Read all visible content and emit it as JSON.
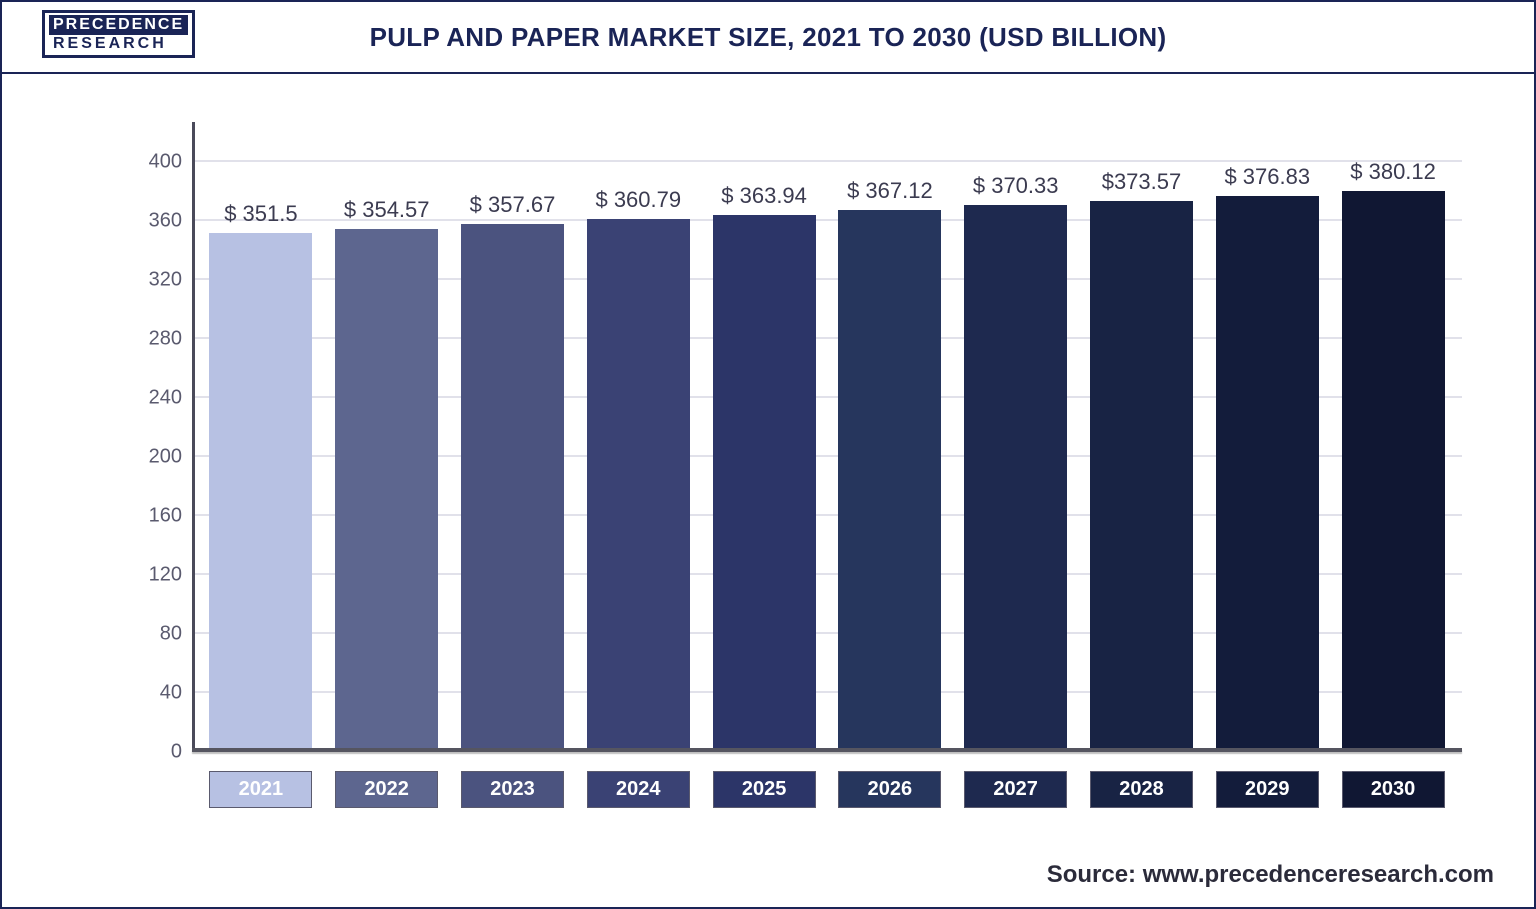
{
  "logo": {
    "line1": "PRECEDENCE",
    "line2": "RESEARCH"
  },
  "title": "PULP AND PAPER MARKET SIZE, 2021 TO 2030 (USD BILLION)",
  "source": "Source: www.precedenceresearch.com",
  "chart": {
    "type": "bar",
    "ylim": [
      0,
      420
    ],
    "yticks": [
      0,
      40,
      80,
      120,
      160,
      200,
      240,
      280,
      320,
      360,
      400
    ],
    "ytick_step": 40,
    "grid_color": "#e1e1ea",
    "axis_color": "#4a4a5a",
    "background_color": "#ffffff",
    "value_prefix": "$ ",
    "value_fontsize": 22,
    "tick_fontsize": 20,
    "bar_width_ratio": 0.82,
    "categories": [
      "2021",
      "2022",
      "2023",
      "2024",
      "2025",
      "2026",
      "2027",
      "2028",
      "2029",
      "2030"
    ],
    "value_labels": [
      "$ 351.5",
      "$ 354.57",
      "$ 357.67",
      "$ 360.79",
      "$ 363.94",
      "$ 367.12",
      "$ 370.33",
      "$373.57",
      "$ 376.83",
      "$ 380.12"
    ],
    "values": [
      351.5,
      354.57,
      357.67,
      360.79,
      363.94,
      367.12,
      370.33,
      373.57,
      376.83,
      380.12
    ],
    "bar_colors": [
      "#b7c1e3",
      "#5d668f",
      "#4b537f",
      "#3a4274",
      "#2c3568",
      "#26365d",
      "#1e294f",
      "#182344",
      "#131c3b",
      "#101733"
    ],
    "xlabel_bg_colors": [
      "#b7c1e3",
      "#5d668f",
      "#4b537f",
      "#3a4274",
      "#2c3568",
      "#26365d",
      "#1e294f",
      "#182344",
      "#131c3b",
      "#101733"
    ]
  }
}
